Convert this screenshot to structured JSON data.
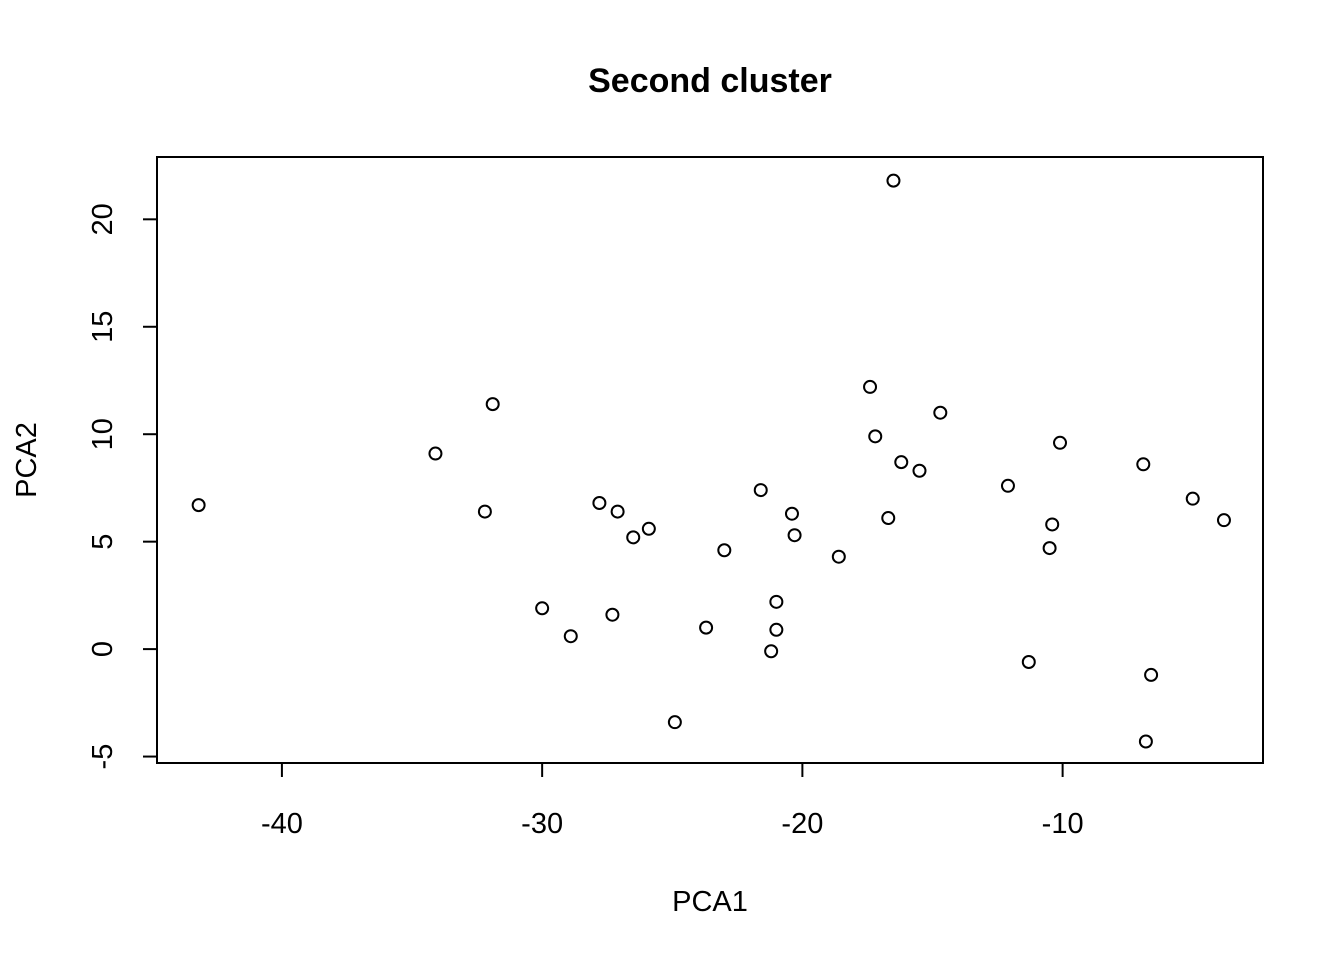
{
  "chart_data": {
    "type": "scatter",
    "title": "Second cluster",
    "xlabel": "PCA1",
    "ylabel": "PCA2",
    "xlim": [
      -44.8,
      -2.3
    ],
    "ylim": [
      -5.3,
      22.9
    ],
    "x_ticks": [
      -40,
      -30,
      -20,
      -10
    ],
    "x_tick_labels": [
      "-40",
      "-30",
      "-20",
      "-10"
    ],
    "y_ticks": [
      -5,
      0,
      5,
      10,
      15,
      20
    ],
    "y_tick_labels": [
      "-5",
      "0",
      "5",
      "10",
      "15",
      "20"
    ],
    "grid": false,
    "legend": "none",
    "points": [
      {
        "x": -43.2,
        "y": 6.7
      },
      {
        "x": -34.1,
        "y": 9.1
      },
      {
        "x": -32.2,
        "y": 6.4
      },
      {
        "x": -31.9,
        "y": 11.4
      },
      {
        "x": -30.0,
        "y": 1.9
      },
      {
        "x": -28.9,
        "y": 0.6
      },
      {
        "x": -27.8,
        "y": 6.8
      },
      {
        "x": -27.3,
        "y": 1.6
      },
      {
        "x": -27.1,
        "y": 6.4
      },
      {
        "x": -26.5,
        "y": 5.2
      },
      {
        "x": -25.9,
        "y": 5.6
      },
      {
        "x": -24.9,
        "y": -3.4
      },
      {
        "x": -23.7,
        "y": 1.0
      },
      {
        "x": -23.0,
        "y": 4.6
      },
      {
        "x": -21.6,
        "y": 7.4
      },
      {
        "x": -21.2,
        "y": -0.1
      },
      {
        "x": -21.0,
        "y": 2.2
      },
      {
        "x": -21.0,
        "y": 0.9
      },
      {
        "x": -20.4,
        "y": 6.3
      },
      {
        "x": -20.3,
        "y": 5.3
      },
      {
        "x": -18.6,
        "y": 4.3
      },
      {
        "x": -17.4,
        "y": 12.2
      },
      {
        "x": -17.2,
        "y": 9.9
      },
      {
        "x": -16.7,
        "y": 6.1
      },
      {
        "x": -16.5,
        "y": 21.8
      },
      {
        "x": -16.2,
        "y": 8.7
      },
      {
        "x": -15.5,
        "y": 8.3
      },
      {
        "x": -14.7,
        "y": 11.0
      },
      {
        "x": -12.1,
        "y": 7.6
      },
      {
        "x": -11.3,
        "y": -0.6
      },
      {
        "x": -10.5,
        "y": 4.7
      },
      {
        "x": -10.4,
        "y": 5.8
      },
      {
        "x": -10.1,
        "y": 9.6
      },
      {
        "x": -6.9,
        "y": 8.6
      },
      {
        "x": -6.8,
        "y": -4.3
      },
      {
        "x": -6.6,
        "y": -1.2
      },
      {
        "x": -5.0,
        "y": 7.0
      },
      {
        "x": -3.8,
        "y": 6.0
      }
    ]
  }
}
